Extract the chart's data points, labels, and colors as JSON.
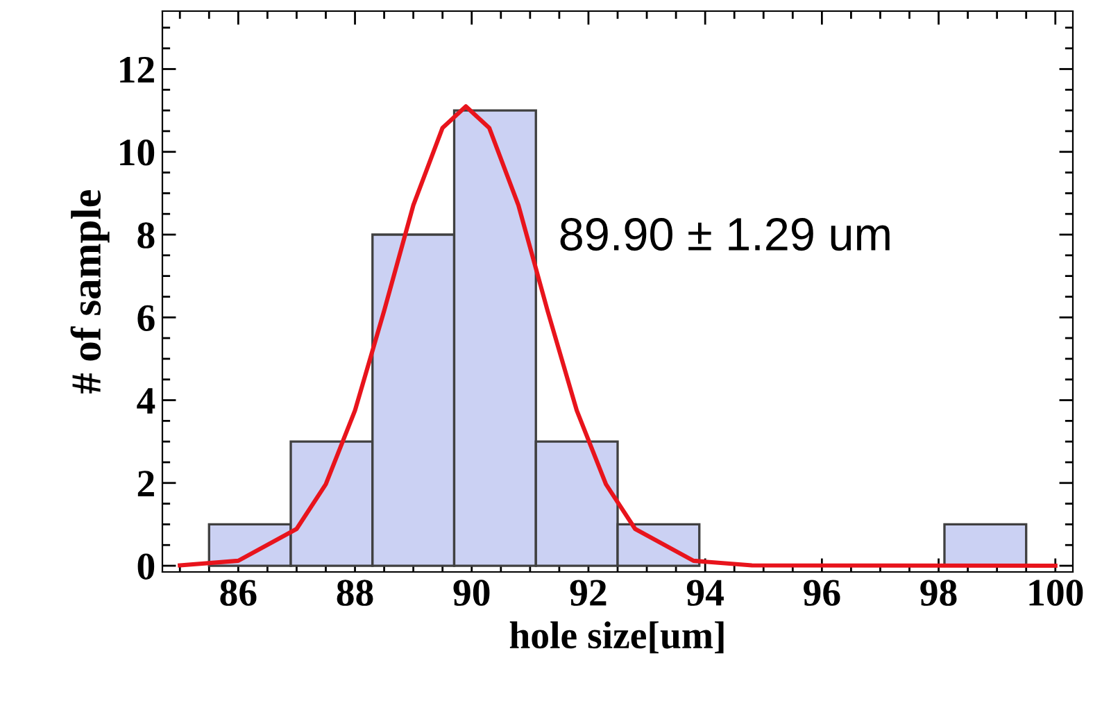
{
  "chart_data": {
    "type": "histogram",
    "xlabel": "hole size[um]",
    "ylabel": "# of sample",
    "annotations": [
      "89.90 ± 1.29 um"
    ],
    "bins": [
      85.5,
      86.9,
      88.3,
      89.7,
      91.1,
      92.5,
      93.9,
      95.3,
      96.7,
      98.1,
      99.5
    ],
    "series": [
      {
        "color": "#cbd1f3",
        "values": [
          1,
          3,
          8,
          11,
          3,
          1,
          0,
          0,
          0,
          1
        ]
      },
      {
        "type": "line",
        "color": "#e8141c",
        "x": [
          85,
          86,
          87,
          87.5,
          88,
          88.5,
          89,
          89.5,
          89.9,
          90.3,
          90.8,
          91.3,
          91.8,
          92.3,
          92.8,
          93.8,
          94.8,
          100
        ],
        "values": [
          0.01,
          0.12,
          0.89,
          1.97,
          3.75,
          6.16,
          8.71,
          10.58,
          11.1,
          10.58,
          8.71,
          6.16,
          3.75,
          1.97,
          0.89,
          0.12,
          0.01,
          0
        ]
      }
    ],
    "xlim": [
      84.7,
      100.3
    ],
    "ylim": [
      -0.15,
      13.4
    ],
    "xticks": [
      86,
      88,
      90,
      92,
      94,
      96,
      98,
      100
    ],
    "yticks": [
      0,
      2,
      4,
      6,
      8,
      10,
      12
    ],
    "grid": false,
    "legend": false
  }
}
